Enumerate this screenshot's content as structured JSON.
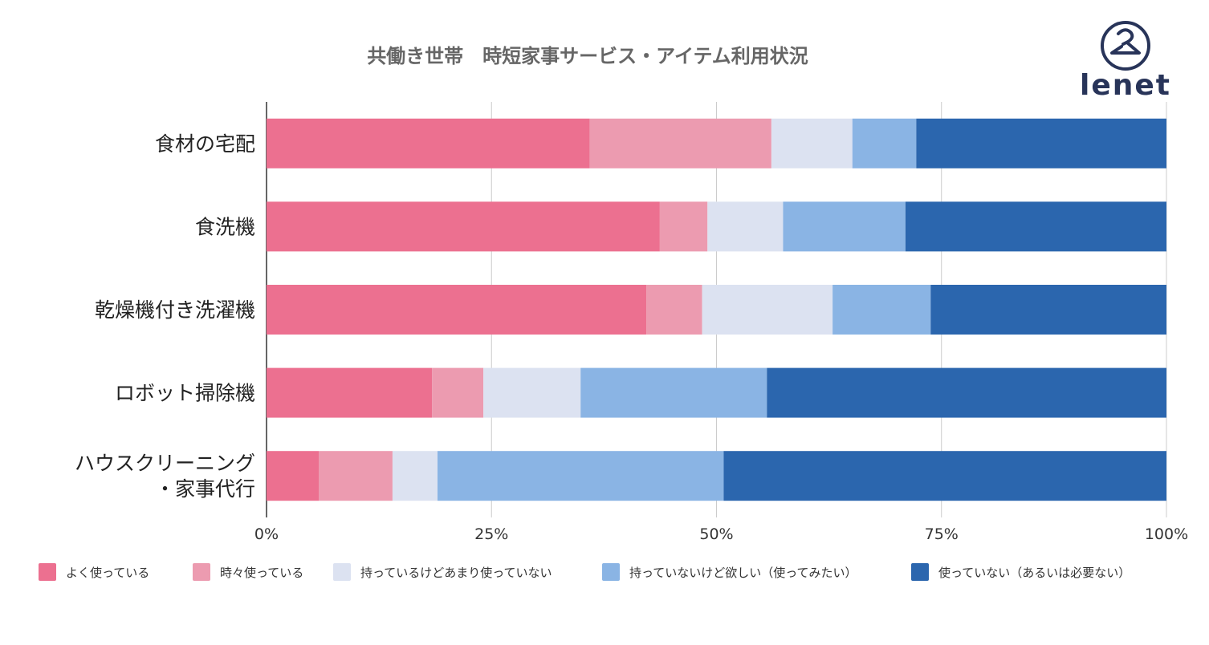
{
  "logo": {
    "text": "lenet",
    "color": "#283459"
  },
  "chart_data": {
    "type": "bar",
    "orientation": "horizontal",
    "stacked": "percent",
    "title": "共働き世帯　時短家事サービス・アイテム利用状況",
    "categories": [
      [
        "食材の宅配"
      ],
      [
        "食洗機"
      ],
      [
        "乾燥機付き洗濯機"
      ],
      [
        "ロボット掃除機"
      ],
      [
        "ハウスクリーニング",
        "・家事代行"
      ]
    ],
    "series": [
      {
        "name": "よく使っている",
        "color": "#EC7090",
        "values": [
          35.9,
          43.7,
          42.2,
          18.4,
          5.8
        ]
      },
      {
        "name": "時々使っている",
        "color": "#EC9BB0",
        "values": [
          20.2,
          5.3,
          6.2,
          5.7,
          8.2
        ]
      },
      {
        "name": "持っているけどあまり使っていない",
        "color": "#DCE2F1",
        "values": [
          9.0,
          8.4,
          14.5,
          10.8,
          5.0
        ]
      },
      {
        "name": "持っていないけど欲しい（使ってみたい）",
        "color": "#8AB4E4",
        "values": [
          7.1,
          13.6,
          10.9,
          20.7,
          31.8
        ]
      },
      {
        "name": "使っていない（あるいは必要ない）",
        "color": "#2B66AE",
        "values": [
          27.8,
          29.0,
          26.2,
          44.4,
          49.2
        ]
      }
    ],
    "xlim": [
      0,
      100
    ],
    "xticks": [
      "0%",
      "25%",
      "50%",
      "75%",
      "100%"
    ],
    "grid": true,
    "legend": "bottom"
  }
}
